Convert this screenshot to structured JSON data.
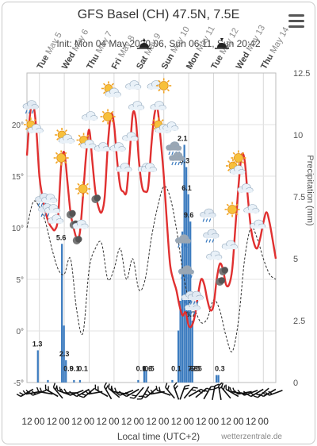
{
  "header": {
    "title": "GFS Basel (CH) 47.5N, 7.5E",
    "init_line": "Init: Mon 04 May 2020 06, Sun 06:11, Sun 20:42",
    "menu_icon": "hamburger-menu-icon"
  },
  "footer": {
    "x_axis_title": "Local time (UTC+2)",
    "credit": "wetterzentrale.de"
  },
  "chart_data": {
    "type": "line",
    "days": [
      {
        "name": "Tue",
        "date": "May 5"
      },
      {
        "name": "Wed",
        "date": "May 6"
      },
      {
        "name": "Thu",
        "date": "May 7"
      },
      {
        "name": "Fri",
        "date": "May 8"
      },
      {
        "name": "Sat",
        "date": "May 9"
      },
      {
        "name": "Sun",
        "date": "May 10"
      },
      {
        "name": "Mon",
        "date": "May 11"
      },
      {
        "name": "Tue",
        "date": "May 12"
      },
      {
        "name": "Wed",
        "date": "May 13"
      },
      {
        "name": "Thu",
        "date": "May 14"
      }
    ],
    "x_tick_labels": [
      "12",
      "00",
      "12",
      "00",
      "12",
      "00",
      "12",
      "00",
      "12",
      "00",
      "12",
      "00",
      "12",
      "00",
      "12",
      "00",
      "12",
      "00",
      "12",
      "00"
    ],
    "x_hours": [
      0,
      240
    ],
    "left_axis": {
      "ylim": [
        -5,
        25
      ],
      "ticks": [
        -5,
        0,
        5,
        10,
        15,
        20
      ],
      "tick_labels": [
        "-5°",
        "0°",
        "5°",
        "10°",
        "15°",
        "20°"
      ]
    },
    "right_axis": {
      "ylim": [
        0,
        12.5
      ],
      "ticks": [
        0,
        2.5,
        5,
        7.5,
        10,
        12.5
      ],
      "tick_labels": [
        "0",
        "2.5",
        "5",
        "7.5",
        "10",
        "12.5"
      ],
      "label": "Precipitation (mm)"
    },
    "series": [
      {
        "kind": "temperature",
        "color": "#e03030",
        "x": [
          0,
          3,
          6,
          9,
          12,
          15,
          18,
          21,
          24,
          27,
          30,
          33,
          36,
          39,
          42,
          45,
          48,
          51,
          54,
          57,
          60,
          63,
          66,
          69,
          72,
          75,
          78,
          81,
          84,
          87,
          90,
          93,
          96,
          99,
          102,
          105,
          108,
          111,
          114,
          117,
          120,
          123,
          126,
          129,
          132,
          135,
          138,
          141,
          144,
          147,
          150,
          153,
          156,
          159,
          162,
          165,
          168,
          171,
          174,
          177,
          180,
          183,
          186,
          189,
          192,
          195,
          198,
          201,
          204,
          207,
          210,
          213,
          216,
          219,
          222,
          225,
          228,
          231,
          234,
          237,
          240
        ],
        "y": [
          17,
          21,
          22,
          19.6,
          15,
          13,
          11.5,
          10.5,
          10,
          9.8,
          11,
          16,
          17.3,
          14.5,
          11.5,
          10,
          9,
          9.5,
          13,
          17,
          19.5,
          16.5,
          13.5,
          12,
          11.5,
          13,
          18,
          21,
          20,
          16.5,
          14,
          13.5,
          13.5,
          17,
          21,
          20.5,
          16.5,
          14,
          13.5,
          14,
          18,
          21,
          21.5,
          18.5,
          15,
          10.5,
          6.5,
          5,
          4,
          2.5,
          1.5,
          1.8,
          0.5,
          0.5,
          1.5,
          3.5,
          5,
          4.5,
          3,
          2,
          2.5,
          5,
          6.5,
          6,
          4.5,
          4.5,
          6,
          10,
          14,
          17,
          16.5,
          13,
          10,
          8.5,
          8,
          9,
          10.5,
          11.5,
          10.5,
          8.8,
          7
        ]
      },
      {
        "kind": "dewpoint",
        "color": "#303030",
        "x": [
          0,
          6,
          12,
          18,
          24,
          30,
          36,
          42,
          48,
          54,
          60,
          66,
          72,
          78,
          84,
          90,
          96,
          102,
          108,
          114,
          120,
          126,
          132,
          138,
          144,
          150,
          156,
          162,
          168,
          174,
          180,
          186,
          192,
          198,
          204,
          210,
          216,
          222,
          228,
          234,
          240
        ],
        "y": [
          10,
          12.5,
          12,
          10.5,
          8,
          6,
          5.5,
          7,
          2,
          -0.2,
          6,
          8,
          8.5,
          5,
          6,
          8,
          5,
          7,
          4,
          5,
          9,
          12,
          14,
          13,
          10,
          6,
          3,
          2,
          0.8,
          1.2,
          3,
          2,
          -0.5,
          -2,
          1,
          7,
          10,
          9,
          7,
          5.5,
          5
        ]
      }
    ],
    "precip_bars": {
      "color": "#3b7bbf",
      "values": [
        0,
        0,
        0,
        0,
        0,
        1.3,
        0,
        0,
        0,
        0,
        0.1,
        0,
        0,
        0,
        0,
        0,
        0,
        5.6,
        2.3,
        0.9,
        0,
        0,
        0,
        0.1,
        0,
        0,
        0.1,
        0,
        0,
        0,
        0,
        0,
        0,
        0,
        0,
        0,
        0,
        0,
        0,
        0,
        0,
        0,
        0,
        0,
        0,
        0,
        0,
        0,
        0,
        0,
        0,
        0,
        0,
        0,
        0,
        0.1,
        0,
        0,
        0.6,
        0.5,
        0,
        0,
        0,
        0,
        0,
        0,
        0,
        0,
        0,
        0,
        0,
        0,
        0.1,
        0,
        0,
        2.1,
        3.3,
        6.1,
        9.6,
        8.7,
        7.6,
        6.5,
        2.5,
        0,
        0,
        0,
        0,
        0,
        0,
        0,
        0,
        0,
        0,
        0,
        0.3,
        0.3,
        0,
        0,
        0,
        0,
        0,
        0,
        0,
        0,
        0,
        0,
        0,
        0,
        0,
        0,
        0,
        0,
        0,
        0,
        0,
        0,
        0,
        0,
        0,
        0,
        0,
        0,
        0,
        0
      ]
    },
    "precip_labels": [
      {
        "x": 10,
        "value": "1.3"
      },
      {
        "x": 33,
        "value": "5.6"
      },
      {
        "x": 36,
        "value": "2.3"
      },
      {
        "x": 40,
        "value": "0.9"
      },
      {
        "x": 46,
        "value": "0.1"
      },
      {
        "x": 54,
        "value": "0.1"
      },
      {
        "x": 110,
        "value": "0.1"
      },
      {
        "x": 116,
        "value": "0.6"
      },
      {
        "x": 118,
        "value": "0.5"
      },
      {
        "x": 144,
        "value": "0.1"
      },
      {
        "x": 150,
        "value": "2.1"
      },
      {
        "x": 152,
        "value": "3.3"
      },
      {
        "x": 154,
        "value": "6.1"
      },
      {
        "x": 156,
        "value": "9.6"
      },
      {
        "x": 158,
        "value": "8.7"
      },
      {
        "x": 160,
        "value": "7.6"
      },
      {
        "x": 162,
        "value": "6.5"
      },
      {
        "x": 164,
        "value": "2.5"
      },
      {
        "x": 186,
        "value": "0.3"
      }
    ],
    "weather_icons": [
      {
        "x": 3,
        "t": 21,
        "icon": "cloud-rain"
      },
      {
        "x": 6,
        "t": 19,
        "icon": "sun-cloud"
      },
      {
        "x": 15,
        "t": 12,
        "icon": "cloud-rain"
      },
      {
        "x": 18,
        "t": 11,
        "icon": "cloud-rain"
      },
      {
        "x": 21,
        "t": 12,
        "icon": "cloud"
      },
      {
        "x": 24,
        "t": 11,
        "icon": "cloud"
      },
      {
        "x": 27,
        "t": 10,
        "icon": "cloud"
      },
      {
        "x": 33,
        "t": 16,
        "icon": "sun"
      },
      {
        "x": 36,
        "t": 18,
        "icon": "sun-cloud"
      },
      {
        "x": 42,
        "t": 10.5,
        "icon": "moon-cloud"
      },
      {
        "x": 45,
        "t": 9.5,
        "icon": "moon-cloud"
      },
      {
        "x": 48,
        "t": 8,
        "icon": "moon-cloud"
      },
      {
        "x": 51,
        "t": 9.5,
        "icon": "cloud"
      },
      {
        "x": 54,
        "t": 13,
        "icon": "sun"
      },
      {
        "x": 57,
        "t": 17.5,
        "icon": "sun-cloud"
      },
      {
        "x": 60,
        "t": 20,
        "icon": "cloud"
      },
      {
        "x": 66,
        "t": 12,
        "icon": "moon-cloud"
      },
      {
        "x": 72,
        "t": 17,
        "icon": "cloud"
      },
      {
        "x": 78,
        "t": 20,
        "icon": "sun"
      },
      {
        "x": 81,
        "t": 22.5,
        "icon": "sun-cloud"
      },
      {
        "x": 87,
        "t": 17,
        "icon": "cloud"
      },
      {
        "x": 93,
        "t": 15,
        "icon": "cloud"
      },
      {
        "x": 99,
        "t": 18,
        "icon": "cloud"
      },
      {
        "x": 102,
        "t": 23,
        "icon": "cloud"
      },
      {
        "x": 105,
        "t": 21,
        "icon": "cloud"
      },
      {
        "x": 114,
        "t": 15,
        "icon": "cloud"
      },
      {
        "x": 117,
        "t": 15,
        "icon": "cloud"
      },
      {
        "x": 123,
        "t": 23,
        "icon": "cloud"
      },
      {
        "x": 126,
        "t": 21,
        "icon": "cloud"
      },
      {
        "x": 129,
        "t": 19,
        "icon": "sun-cloud"
      },
      {
        "x": 132,
        "t": 23,
        "icon": "sun"
      },
      {
        "x": 138,
        "t": 19,
        "icon": "cloud"
      },
      {
        "x": 141,
        "t": 17,
        "icon": "cloud-heavy-rain"
      },
      {
        "x": 144,
        "t": 16,
        "icon": "cloud-heavy-rain"
      },
      {
        "x": 150,
        "t": 8,
        "icon": "cloud-heavy-rain"
      },
      {
        "x": 153,
        "t": 5,
        "icon": "cloud-heavy-rain"
      },
      {
        "x": 156,
        "t": 2.5,
        "icon": "cloud-rain"
      },
      {
        "x": 159,
        "t": 1.5,
        "icon": "cloud-rain"
      },
      {
        "x": 162,
        "t": 2.5,
        "icon": "cloud-rain"
      },
      {
        "x": 174,
        "t": 10.5,
        "icon": "cloud-rain"
      },
      {
        "x": 177,
        "t": 8.5,
        "icon": "cloud-rain"
      },
      {
        "x": 180,
        "t": 6.5,
        "icon": "cloud"
      },
      {
        "x": 186,
        "t": 4,
        "icon": "moon-cloud"
      },
      {
        "x": 189,
        "t": 5,
        "icon": "moon-cloud"
      },
      {
        "x": 195,
        "t": 7.5,
        "icon": "cloud"
      },
      {
        "x": 198,
        "t": 11,
        "icon": "sun"
      },
      {
        "x": 201,
        "t": 15,
        "icon": "sun-cloud"
      },
      {
        "x": 204,
        "t": 16,
        "icon": "sun"
      },
      {
        "x": 210,
        "t": 13,
        "icon": "cloud"
      },
      {
        "x": 216,
        "t": 11,
        "icon": "cloud"
      },
      {
        "x": 222,
        "t": 9.5,
        "icon": "cloud"
      }
    ],
    "sun_times": [
      {
        "x": 113,
        "icon": "sunrise"
      },
      {
        "x": 188,
        "icon": "sunset"
      }
    ],
    "wind_barbs": [
      {
        "x": 0,
        "dir": 240
      },
      {
        "x": 6,
        "dir": 260
      },
      {
        "x": 12,
        "dir": 250
      },
      {
        "x": 18,
        "dir": 280
      },
      {
        "x": 24,
        "dir": 300
      },
      {
        "x": 30,
        "dir": 320
      },
      {
        "x": 36,
        "dir": 290
      },
      {
        "x": 42,
        "dir": 270
      },
      {
        "x": 48,
        "dir": 250
      },
      {
        "x": 54,
        "dir": 240
      },
      {
        "x": 60,
        "dir": 230
      },
      {
        "x": 66,
        "dir": 260
      },
      {
        "x": 72,
        "dir": 300
      },
      {
        "x": 78,
        "dir": 330
      },
      {
        "x": 84,
        "dir": 310
      },
      {
        "x": 90,
        "dir": 280
      },
      {
        "x": 96,
        "dir": 250
      },
      {
        "x": 102,
        "dir": 240
      },
      {
        "x": 108,
        "dir": 220
      },
      {
        "x": 114,
        "dir": 210
      },
      {
        "x": 120,
        "dir": 230
      },
      {
        "x": 126,
        "dir": 260
      },
      {
        "x": 132,
        "dir": 290
      },
      {
        "x": 138,
        "dir": 320
      },
      {
        "x": 144,
        "dir": 340
      },
      {
        "x": 150,
        "dir": 20
      },
      {
        "x": 156,
        "dir": 40
      },
      {
        "x": 162,
        "dir": 60
      },
      {
        "x": 168,
        "dir": 50
      },
      {
        "x": 174,
        "dir": 30
      },
      {
        "x": 180,
        "dir": 10
      },
      {
        "x": 186,
        "dir": 350
      },
      {
        "x": 192,
        "dir": 320
      },
      {
        "x": 198,
        "dir": 300
      },
      {
        "x": 204,
        "dir": 280
      },
      {
        "x": 210,
        "dir": 260
      },
      {
        "x": 216,
        "dir": 250
      },
      {
        "x": 222,
        "dir": 240
      },
      {
        "x": 228,
        "dir": 230
      },
      {
        "x": 234,
        "dir": 240
      },
      {
        "x": 240,
        "dir": 250
      }
    ]
  }
}
